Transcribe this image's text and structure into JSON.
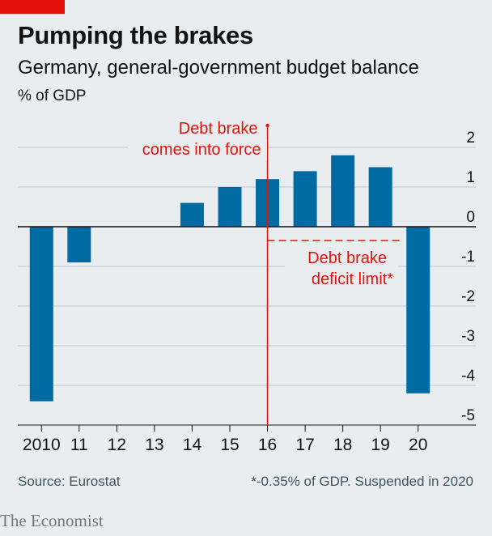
{
  "header": {
    "title": "Pumping the brakes",
    "subtitle": "Germany, general-government budget balance",
    "units": "% of GDP"
  },
  "footer": {
    "source": "Source: Eurostat",
    "note": "*-0.35% of GDP. Suspended in 2020",
    "brand": "The Economist"
  },
  "colors": {
    "bar": "#006ba2",
    "annotation": "#e3120b",
    "background": "#e9edf0",
    "grid": "#b7c6cf"
  },
  "chart_data": {
    "type": "bar",
    "title": "Pumping the brakes",
    "subtitle": "Germany, general-government budget balance",
    "ylabel": "% of GDP",
    "categories": [
      "2010",
      "11",
      "12",
      "13",
      "14",
      "15",
      "16",
      "17",
      "18",
      "19",
      "20"
    ],
    "values": [
      -4.4,
      -0.9,
      null,
      null,
      0.6,
      1.0,
      1.2,
      1.4,
      1.8,
      1.5,
      -4.2
    ],
    "ylim": [
      -5,
      2
    ],
    "yticks": [
      "2",
      "1",
      "0",
      "-1",
      "-2",
      "-3",
      "-4",
      "-5"
    ],
    "ytick_values": [
      2,
      1,
      0,
      -1,
      -2,
      -3,
      -4,
      -5
    ],
    "axis_side": "right",
    "grid": true,
    "annotations": [
      {
        "type": "vline",
        "x": "16",
        "lines": [
          "Debt brake",
          "comes into force"
        ]
      },
      {
        "type": "hline",
        "y": -0.35,
        "x_from": "16",
        "x_to": "19",
        "lines": [
          "Debt brake",
          "deficit limit*"
        ]
      }
    ]
  }
}
